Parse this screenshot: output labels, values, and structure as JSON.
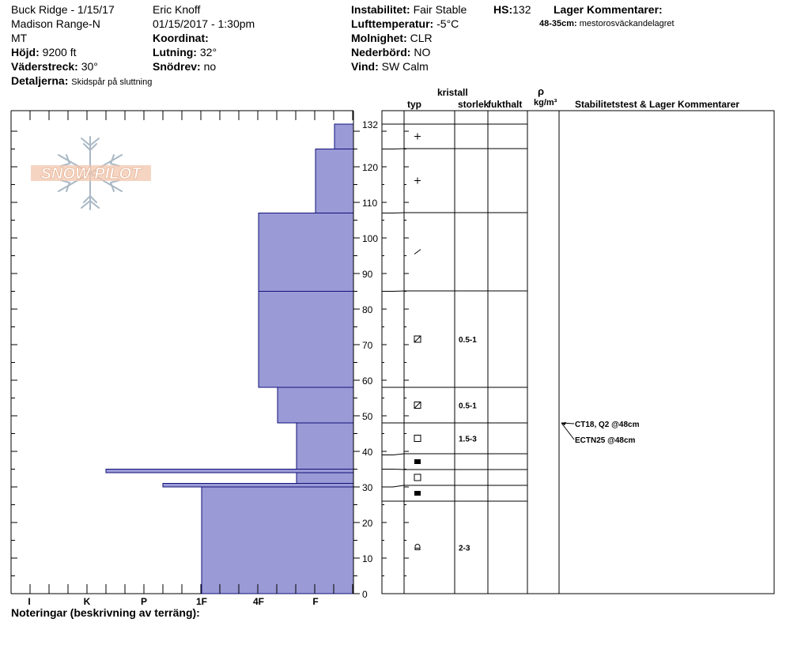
{
  "header": {
    "left": {
      "line1": "Buck Ridge - 1/15/17",
      "line2": "Madison Range-N",
      "line3": "MT",
      "hojd_label": "Höjd:",
      "hojd_value": "9200 ft",
      "vader_label": "Väderstreck:",
      "vader_value": "30°",
      "detaljer_label": "Detaljerna:",
      "detaljer_value": "Skidspår på sluttning"
    },
    "mid": {
      "observer": "Eric Knoff",
      "datetime": "01/15/2017 - 1:30pm",
      "koordinat_label": "Koordinat:",
      "koordinat_value": "",
      "lutning_label": "Lutning:",
      "lutning_value": "32°",
      "snodrev_label": "Snödrev:",
      "snodrev_value": "no"
    },
    "right": {
      "instab_label": "Instabilitet:",
      "instab_value": "Fair Stable",
      "hs_label": "HS:",
      "hs_value": "132",
      "luft_label": "Lufttemperatur:",
      "luft_value": "-5°C",
      "moln_label": "Molnighet:",
      "moln_value": "CLR",
      "neder_label": "Nederbörd:",
      "neder_value": "NO",
      "vind_label": "Vind:",
      "vind_value": "SW Calm",
      "lager_label": "Lager Kommentarer:",
      "lager_range": "48-35cm:",
      "lager_text": "mestorosväckandelagret"
    }
  },
  "logo": {
    "text": "SNOW PILOT"
  },
  "columns": {
    "kristall": "kristall",
    "typ": "typ",
    "storlek": "storlek",
    "fukthalt": "fukthalt",
    "rho": "ρ",
    "density_unit": "kg/m³",
    "stability": "Stabilitetstest & Lager Kommentarer"
  },
  "footer": {
    "notes_label": "Noteringar (beskrivning av terräng):"
  },
  "chart_data": {
    "type": "bar",
    "y_axis": {
      "range": [
        0,
        132
      ],
      "tick_labels": [
        0,
        10,
        20,
        30,
        40,
        50,
        60,
        70,
        80,
        90,
        100,
        110,
        120,
        132
      ]
    },
    "x_axis": {
      "categories": [
        "I",
        "K",
        "P",
        "1F",
        "4F",
        "F"
      ]
    },
    "hardness_layers": [
      {
        "bottom": 0,
        "top": 30,
        "hardness": "1F"
      },
      {
        "bottom": 30,
        "top": 31,
        "hardness": "P-"
      },
      {
        "bottom": 31,
        "top": 34,
        "hardness": "F+"
      },
      {
        "bottom": 34,
        "top": 35,
        "hardness": "K-"
      },
      {
        "bottom": 35,
        "top": 48,
        "hardness": "F+"
      },
      {
        "bottom": 48,
        "top": 58,
        "hardness": "4F-"
      },
      {
        "bottom": 58,
        "top": 85,
        "hardness": "4F"
      },
      {
        "bottom": 85,
        "top": 107,
        "hardness": "4F"
      },
      {
        "bottom": 107,
        "top": 125,
        "hardness": "F"
      },
      {
        "bottom": 125,
        "top": 132,
        "hardness": "F-"
      }
    ],
    "strat_layers": [
      {
        "bottom": 0,
        "top": 26,
        "type": "rounded-facet",
        "size": "2-3"
      },
      {
        "bottom": 26,
        "top": 30,
        "type": "melt-crust",
        "size": ""
      },
      {
        "bottom": 30,
        "top": 35,
        "type": "facet",
        "size": ""
      },
      {
        "bottom": 35,
        "top": 39,
        "type": "melt-crust",
        "size": ""
      },
      {
        "bottom": 39,
        "top": 48,
        "type": "facet",
        "size": "1.5-3"
      },
      {
        "bottom": 48,
        "top": 58,
        "type": "faceted-round",
        "size": "0.5-1"
      },
      {
        "bottom": 58,
        "top": 85,
        "type": "faceted-round",
        "size": "0.5-1"
      },
      {
        "bottom": 85,
        "top": 107,
        "type": "fragment",
        "size": ""
      },
      {
        "bottom": 107,
        "top": 125,
        "type": "new-snow",
        "size": ""
      },
      {
        "bottom": 125,
        "top": 132,
        "type": "new-snow",
        "size": ""
      }
    ],
    "tests": [
      {
        "label": "CT18, Q2 @48cm",
        "depth": 48
      },
      {
        "label": "ECTN25 @48cm",
        "depth": 48
      }
    ]
  }
}
